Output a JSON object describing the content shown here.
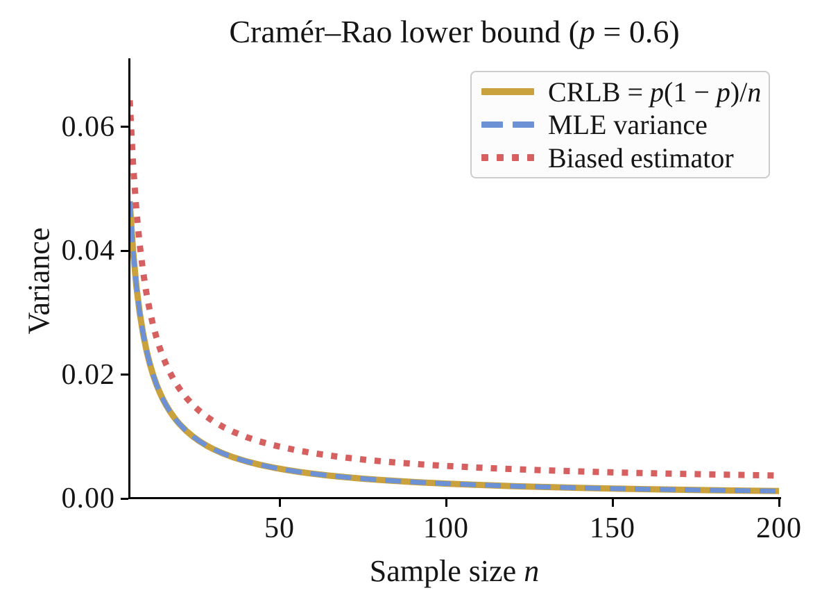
{
  "figure": {
    "title": {
      "prefix": "Cramér–Rao lower bound (",
      "math_var": "p",
      "suffix": " = 0.6)"
    },
    "axes": {
      "ylabel": "Variance",
      "xlabel_prefix": "Sample size ",
      "xlabel_math_var": "n",
      "x_ticks": [
        {
          "value": 50,
          "label": "50"
        },
        {
          "value": 100,
          "label": "100"
        },
        {
          "value": 150,
          "label": "150"
        },
        {
          "value": 200,
          "label": "200"
        }
      ],
      "y_ticks": [
        {
          "value": 0,
          "label": "0.00"
        },
        {
          "value": 0.02,
          "label": "0.02"
        },
        {
          "value": 0.04,
          "label": "0.04"
        },
        {
          "value": 0.06,
          "label": "0.06"
        }
      ]
    },
    "legend": {
      "entries": [
        {
          "id": "crlb",
          "style": "solid",
          "color": "#C9A13D",
          "label_parts": [
            {
              "text": "CRLB = ",
              "italic": false
            },
            {
              "text": "p",
              "italic": true
            },
            {
              "text": "(1 − ",
              "italic": false
            },
            {
              "text": "p",
              "italic": true
            },
            {
              "text": ")/",
              "italic": false
            },
            {
              "text": "n",
              "italic": true
            }
          ]
        },
        {
          "id": "mle",
          "style": "dashed",
          "color": "#6C92D5",
          "label_parts": [
            {
              "text": "MLE variance",
              "italic": false
            }
          ]
        },
        {
          "id": "biased",
          "style": "dotted",
          "color": "#D66060",
          "label_parts": [
            {
              "text": "Biased estimator",
              "italic": false
            }
          ]
        }
      ]
    }
  },
  "chart_data": {
    "type": "line",
    "title": "Cramér–Rao lower bound (p = 0.6)",
    "xlabel": "Sample size n",
    "ylabel": "Variance",
    "p": 0.6,
    "xlim": [
      5,
      200
    ],
    "ylim": [
      0,
      0.0711
    ],
    "x_tick_values": [
      50,
      100,
      150,
      200
    ],
    "y_tick_values": [
      0,
      0.02,
      0.04,
      0.06
    ],
    "grid": false,
    "legend_position": "upper right",
    "x": [
      5,
      6,
      7,
      8,
      9,
      10,
      11,
      12,
      13,
      14,
      15,
      16,
      17,
      18,
      19,
      20,
      22,
      24,
      26,
      28,
      30,
      33,
      36,
      40,
      44,
      48,
      52,
      56,
      60,
      65,
      70,
      75,
      80,
      85,
      90,
      95,
      100,
      110,
      120,
      130,
      140,
      150,
      160,
      170,
      180,
      190,
      200
    ],
    "series": [
      {
        "id": "crlb",
        "name": "CRLB = p(1−p)/n",
        "color": "#C9A13D",
        "line_style": "solid",
        "values": [
          0.048,
          0.04,
          0.034286,
          0.03,
          0.026667,
          0.024,
          0.021818,
          0.02,
          0.018462,
          0.017143,
          0.016,
          0.015,
          0.014118,
          0.013333,
          0.012632,
          0.012,
          0.010909,
          0.01,
          0.009231,
          0.008571,
          0.008,
          0.007273,
          0.006667,
          0.006,
          0.005455,
          0.005,
          0.004615,
          0.004286,
          0.004,
          0.003692,
          0.003429,
          0.0032,
          0.003,
          0.002824,
          0.002667,
          0.002526,
          0.0024,
          0.002182,
          0.002,
          0.001846,
          0.001714,
          0.0016,
          0.0015,
          0.001412,
          0.001333,
          0.001263,
          0.0012
        ]
      },
      {
        "id": "mle",
        "name": "MLE variance",
        "color": "#6C92D5",
        "line_style": "dashed",
        "values": [
          0.048,
          0.04,
          0.034286,
          0.03,
          0.026667,
          0.024,
          0.021818,
          0.02,
          0.018462,
          0.017143,
          0.016,
          0.015,
          0.014118,
          0.013333,
          0.012632,
          0.012,
          0.010909,
          0.01,
          0.009231,
          0.008571,
          0.008,
          0.007273,
          0.006667,
          0.006,
          0.005455,
          0.005,
          0.004615,
          0.004286,
          0.004,
          0.003692,
          0.003429,
          0.0032,
          0.003,
          0.002824,
          0.002667,
          0.002526,
          0.0024,
          0.002182,
          0.002,
          0.001846,
          0.001714,
          0.0016,
          0.0015,
          0.001412,
          0.001333,
          0.001263,
          0.0012
        ]
      },
      {
        "id": "biased",
        "name": "Biased estimator",
        "color": "#D66060",
        "line_style": "dotted",
        "values": [
          0.06431,
          0.05395,
          0.046551,
          0.041,
          0.036683,
          0.03323,
          0.030405,
          0.02805,
          0.026058,
          0.02435,
          0.02287,
          0.021575,
          0.020432,
          0.019417,
          0.018508,
          0.01769,
          0.016277,
          0.0151,
          0.014104,
          0.01325,
          0.01251,
          0.011568,
          0.010783,
          0.00992,
          0.009214,
          0.008625,
          0.008127,
          0.0077,
          0.00733,
          0.006932,
          0.00659,
          0.006294,
          0.006035,
          0.005807,
          0.005603,
          0.005422,
          0.005258,
          0.004976,
          0.00474,
          0.004541,
          0.00437,
          0.004222,
          0.004093,
          0.003978,
          0.003877,
          0.003786,
          0.003704
        ]
      }
    ]
  }
}
